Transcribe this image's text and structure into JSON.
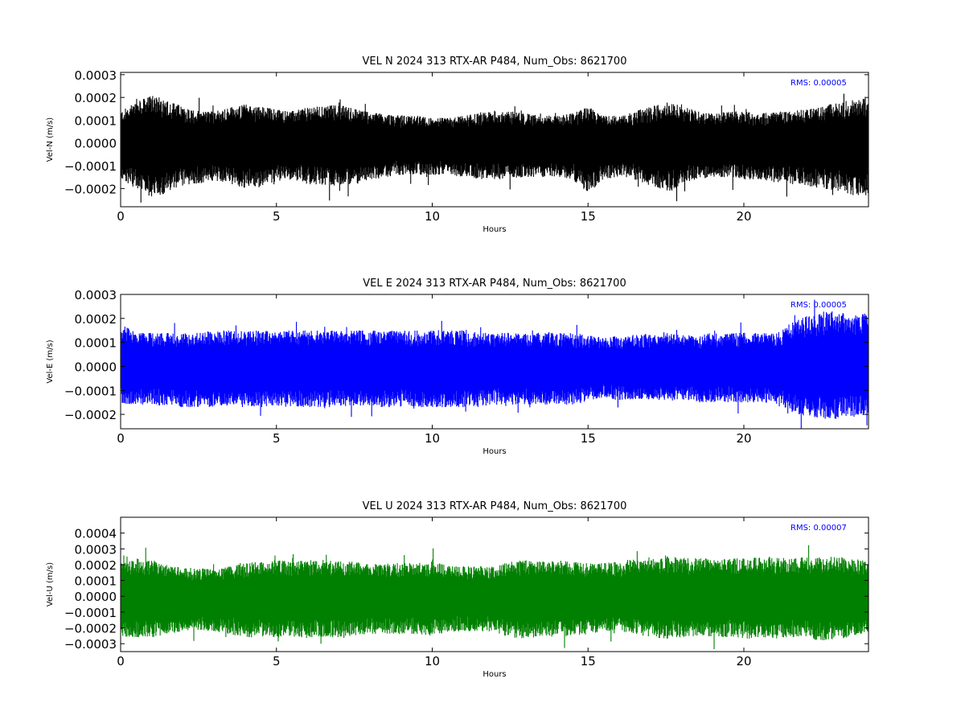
{
  "chart_data": [
    {
      "type": "line",
      "title": "VEL N 2024 313 RTX-AR  P484, Num_Obs: 8621700",
      "xlabel": "Hours",
      "ylabel": "Vel-N (m/s)",
      "xlim": [
        0,
        24
      ],
      "ylim": [
        -0.00028,
        0.00031
      ],
      "xticks": [
        0,
        5,
        10,
        15,
        20
      ],
      "xtick_labels": [
        "0",
        "5",
        "10",
        "15",
        "20"
      ],
      "yticks": [
        -0.0002,
        -0.0001,
        0.0,
        0.0001,
        0.0002,
        0.0003
      ],
      "ytick_labels": [
        "−0.0002",
        "−0.0001",
        "0.0000",
        "0.0001",
        "0.0002",
        "0.0003"
      ],
      "annotation": "RMS:  0.00005",
      "color": "#000000",
      "annotation_color": "#0000ff",
      "grid": false,
      "series": [
        {
          "x": [
            0,
            0.5,
            1,
            1.5,
            2,
            2.5,
            3,
            3.5,
            4,
            4.5,
            5,
            5.5,
            6,
            6.5,
            7,
            7.5,
            8,
            8.5,
            9,
            9.5,
            10,
            10.5,
            11,
            11.5,
            12,
            12.5,
            13,
            13.5,
            14,
            14.5,
            15,
            15.5,
            16,
            16.5,
            17,
            17.5,
            18,
            18.5,
            19,
            19.5,
            20,
            20.5,
            21,
            21.5,
            22,
            22.5,
            23,
            23.5,
            24
          ],
          "upper": [
            0.00014,
            0.00018,
            0.00021,
            0.00019,
            0.00016,
            0.00014,
            0.00014,
            0.00016,
            0.00017,
            0.00016,
            0.00015,
            0.00014,
            0.00016,
            0.00016,
            0.00017,
            0.00015,
            0.00014,
            0.00013,
            0.00012,
            0.00012,
            0.00011,
            0.00011,
            0.00012,
            0.00013,
            0.00014,
            0.00014,
            0.00013,
            0.00012,
            0.00012,
            0.00013,
            0.00016,
            0.00012,
            0.00012,
            0.00014,
            0.00016,
            0.00018,
            0.00017,
            0.00014,
            0.00013,
            0.00014,
            0.00014,
            0.00013,
            0.00014,
            0.00014,
            0.00015,
            0.00016,
            0.00018,
            0.00019,
            0.0002
          ],
          "lower": [
            -0.00016,
            -0.0002,
            -0.00024,
            -0.00022,
            -0.00019,
            -0.00018,
            -0.00017,
            -0.00018,
            -0.0002,
            -0.00019,
            -0.00017,
            -0.00016,
            -0.00018,
            -0.00019,
            -0.00019,
            -0.00018,
            -0.00016,
            -0.00015,
            -0.00014,
            -0.00014,
            -0.00014,
            -0.00014,
            -0.00015,
            -0.00016,
            -0.00016,
            -0.00016,
            -0.00015,
            -0.00015,
            -0.00015,
            -0.00016,
            -0.00022,
            -0.00016,
            -0.00015,
            -0.00016,
            -0.00019,
            -0.00022,
            -0.00019,
            -0.00016,
            -0.00015,
            -0.00015,
            -0.00016,
            -0.00016,
            -0.00017,
            -0.00018,
            -0.00019,
            -0.0002,
            -0.00021,
            -0.00023,
            -0.00024
          ]
        }
      ]
    },
    {
      "type": "line",
      "title": "VEL E 2024 313 RTX-AR  P484, Num_Obs: 8621700",
      "xlabel": "Hours",
      "ylabel": "Vel-E (m/s)",
      "xlim": [
        0,
        24
      ],
      "ylim": [
        -0.00026,
        0.0003
      ],
      "xticks": [
        0,
        5,
        10,
        15,
        20
      ],
      "xtick_labels": [
        "0",
        "5",
        "10",
        "15",
        "20"
      ],
      "yticks": [
        -0.0002,
        -0.0001,
        0.0,
        0.0001,
        0.0002,
        0.0003
      ],
      "ytick_labels": [
        "−0.0002",
        "−0.0001",
        "0.0000",
        "0.0001",
        "0.0002",
        "0.0003"
      ],
      "annotation": "RMS:  0.00005",
      "color": "#0000ff",
      "annotation_color": "#0000ff",
      "grid": false,
      "series": [
        {
          "x": [
            0,
            0.5,
            1,
            1.5,
            2,
            2.5,
            3,
            3.5,
            4,
            4.5,
            5,
            5.5,
            6,
            6.5,
            7,
            7.5,
            8,
            8.5,
            9,
            9.5,
            10,
            10.5,
            11,
            11.5,
            12,
            12.5,
            13,
            13.5,
            14,
            14.5,
            15,
            15.5,
            16,
            16.5,
            17,
            17.5,
            18,
            18.5,
            19,
            19.5,
            20,
            20.5,
            21,
            21.5,
            22,
            22.5,
            23,
            23.5,
            24
          ],
          "upper": [
            0.00018,
            0.00014,
            0.00014,
            0.00014,
            0.00014,
            0.00014,
            0.00015,
            0.00015,
            0.00015,
            0.00015,
            0.00015,
            0.00015,
            0.00015,
            0.00015,
            0.00015,
            0.00015,
            0.00015,
            0.00015,
            0.00015,
            0.00015,
            0.00015,
            0.00015,
            0.00015,
            0.00014,
            0.00014,
            0.00014,
            0.00014,
            0.00014,
            0.00014,
            0.00014,
            0.00013,
            0.00012,
            0.00013,
            0.00013,
            0.00014,
            0.00014,
            0.00013,
            0.00013,
            0.00014,
            0.00014,
            0.00014,
            0.00014,
            0.00014,
            0.00018,
            0.00021,
            0.00023,
            0.00023,
            0.00022,
            0.00022
          ],
          "lower": [
            -0.00016,
            -0.00016,
            -0.00016,
            -0.00017,
            -0.00017,
            -0.00017,
            -0.00017,
            -0.00017,
            -0.00017,
            -0.00017,
            -0.00017,
            -0.00017,
            -0.00017,
            -0.00017,
            -0.00017,
            -0.00017,
            -0.00017,
            -0.00017,
            -0.00017,
            -0.00017,
            -0.00017,
            -0.00017,
            -0.00017,
            -0.00017,
            -0.00016,
            -0.00016,
            -0.00016,
            -0.00016,
            -0.00016,
            -0.00016,
            -0.00015,
            -0.00013,
            -0.00014,
            -0.00014,
            -0.00014,
            -0.00014,
            -0.00014,
            -0.00015,
            -0.00015,
            -0.00015,
            -0.00015,
            -0.00015,
            -0.00016,
            -0.00019,
            -0.00021,
            -0.00022,
            -0.00022,
            -0.00021,
            -0.00021
          ]
        }
      ]
    },
    {
      "type": "line",
      "title": "VEL U 2024 313 RTX-AR  P484, Num_Obs: 8621700",
      "xlabel": "Hours",
      "ylabel": "Vel-U (m/s)",
      "xlim": [
        0,
        24
      ],
      "ylim": [
        -0.00035,
        0.0005
      ],
      "xticks": [
        0,
        5,
        10,
        15,
        20
      ],
      "xtick_labels": [
        "0",
        "5",
        "10",
        "15",
        "20"
      ],
      "yticks": [
        -0.0003,
        -0.0002,
        -0.0001,
        0.0,
        0.0001,
        0.0002,
        0.0003,
        0.0004
      ],
      "ytick_labels": [
        "−0.0003",
        "−0.0002",
        "−0.0001",
        "0.0000",
        "0.0001",
        "0.0002",
        "0.0003",
        "0.0004"
      ],
      "annotation": "RMS:  0.00007",
      "color": "#008000",
      "annotation_color": "#0000ff",
      "grid": false,
      "series": [
        {
          "x": [
            0,
            0.5,
            1,
            1.5,
            2,
            2.5,
            3,
            3.5,
            4,
            4.5,
            5,
            5.5,
            6,
            6.5,
            7,
            7.5,
            8,
            8.5,
            9,
            9.5,
            10,
            10.5,
            11,
            11.5,
            12,
            12.5,
            13,
            13.5,
            14,
            14.5,
            15,
            15.5,
            16,
            16.5,
            17,
            17.5,
            18,
            18.5,
            19,
            19.5,
            20,
            20.5,
            21,
            21.5,
            22,
            22.5,
            23,
            23.5,
            24
          ],
          "upper": [
            0.00022,
            0.00024,
            0.00023,
            0.0002,
            0.00018,
            0.00018,
            0.00017,
            0.00019,
            0.00021,
            0.00022,
            0.00023,
            0.00022,
            0.00023,
            0.00023,
            0.00022,
            0.00022,
            0.00021,
            0.00021,
            0.00021,
            0.00021,
            0.00022,
            0.0002,
            0.00019,
            0.00019,
            0.00019,
            0.00022,
            0.00023,
            0.00022,
            0.00023,
            0.00022,
            0.00021,
            0.00021,
            0.00022,
            0.00024,
            0.00025,
            0.00026,
            0.00025,
            0.00024,
            0.00024,
            0.00024,
            0.00024,
            0.00025,
            0.00025,
            0.00024,
            0.00025,
            0.00025,
            0.00025,
            0.00024,
            0.00022
          ],
          "lower": [
            -0.00026,
            -0.00027,
            -0.00026,
            -0.00024,
            -0.00022,
            -0.00022,
            -0.00022,
            -0.00024,
            -0.00026,
            -0.00026,
            -0.00026,
            -0.00026,
            -0.00027,
            -0.00026,
            -0.00026,
            -0.00025,
            -0.00024,
            -0.00024,
            -0.00024,
            -0.00024,
            -0.00025,
            -0.00023,
            -0.00022,
            -0.00022,
            -0.00023,
            -0.00026,
            -0.00027,
            -0.00026,
            -0.00026,
            -0.00025,
            -0.00024,
            -0.00022,
            -0.00022,
            -0.00024,
            -0.00026,
            -0.00027,
            -0.00026,
            -0.00026,
            -0.00026,
            -0.00026,
            -0.00027,
            -0.00027,
            -0.00027,
            -0.00026,
            -0.00027,
            -0.00028,
            -0.00027,
            -0.00026,
            -0.00024
          ]
        }
      ]
    }
  ]
}
